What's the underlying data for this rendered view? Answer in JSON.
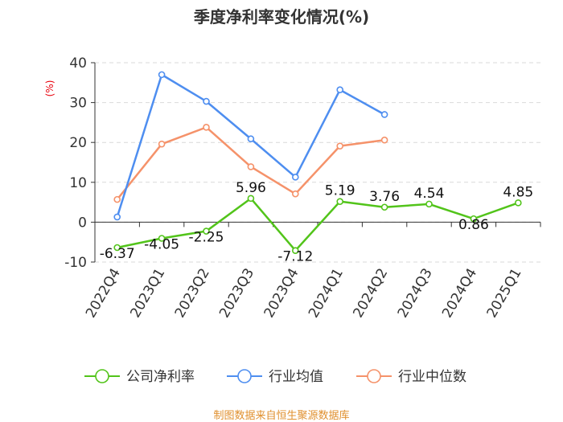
{
  "chart_data": {
    "type": "line",
    "title": "季度净利率变化情况(%)",
    "ylabel": "(%)",
    "xlabel": "",
    "categories": [
      "2022Q4",
      "2023Q1",
      "2023Q2",
      "2023Q3",
      "2023Q4",
      "2024Q1",
      "2024Q2",
      "2024Q3",
      "2024Q4",
      "2025Q1"
    ],
    "ylim": [
      -10,
      40
    ],
    "yticks": [
      40,
      30,
      20,
      10,
      0,
      -10
    ],
    "grid": "horizontal dashed",
    "legend_position": "bottom",
    "series": [
      {
        "name": "公司净利率",
        "color": "#52c41a",
        "values": [
          -6.37,
          -4.05,
          -2.25,
          5.96,
          -7.12,
          5.19,
          3.76,
          4.54,
          0.86,
          4.85
        ],
        "labels": [
          "-6.37",
          "-4.05",
          "-2.25",
          "5.96",
          "-7.12",
          "5.19",
          "3.76",
          "4.54",
          "0.86",
          "4.85"
        ]
      },
      {
        "name": "行业均值",
        "color": "#4e8ef0",
        "values": [
          1.3,
          37.0,
          30.3,
          20.9,
          11.3,
          33.2,
          27.0,
          null,
          null,
          null
        ]
      },
      {
        "name": "行业中位数",
        "color": "#f5926a",
        "values": [
          5.7,
          19.6,
          23.8,
          13.9,
          7.1,
          19.1,
          20.6,
          null,
          null,
          null
        ]
      }
    ]
  },
  "source_text": "制图数据来自恒生聚源数据库"
}
